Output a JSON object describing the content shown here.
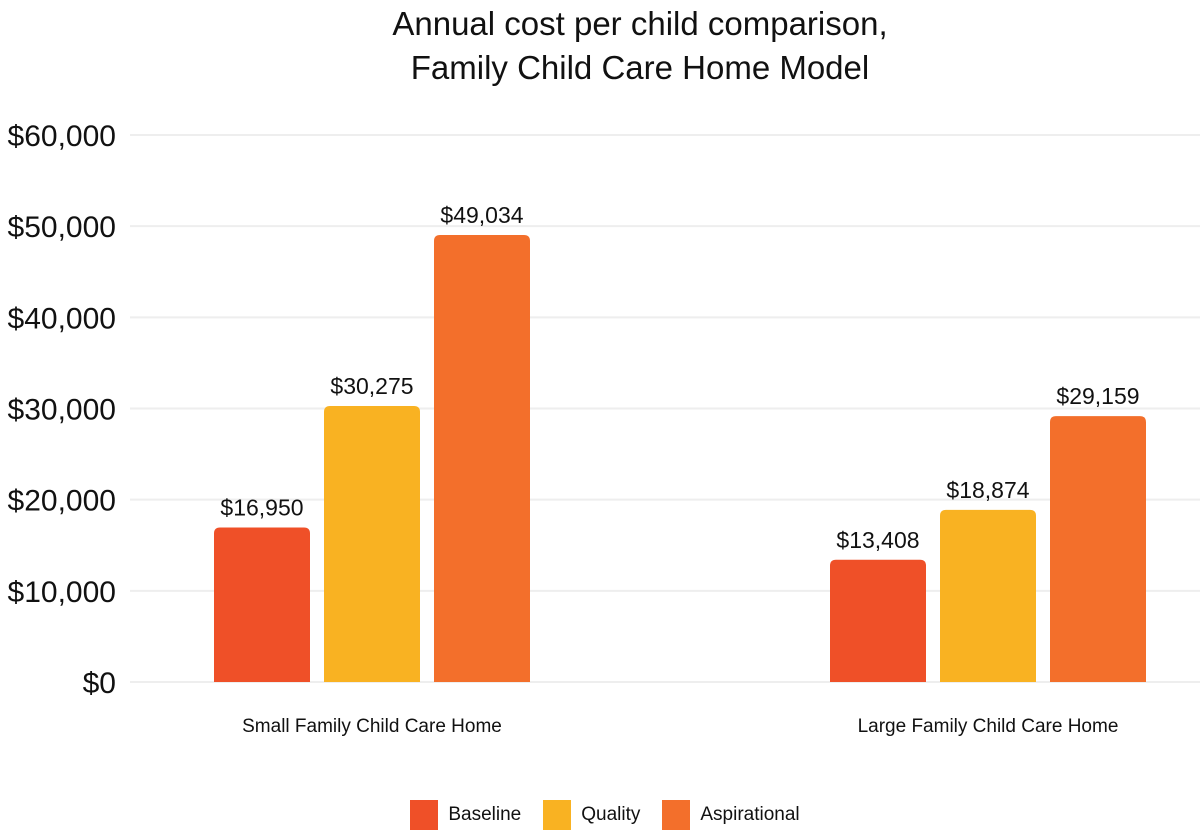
{
  "chart_data": {
    "type": "bar",
    "title_lines": [
      "Annual cost per child comparison,",
      "Family Child Care Home Model"
    ],
    "categories": [
      "Small Family Child Care Home",
      "Large Family Child Care Home"
    ],
    "series": [
      {
        "name": "Baseline",
        "color": "#EF5028",
        "values": [
          16950,
          13408
        ],
        "labels": [
          "$16,950",
          "$13,408"
        ]
      },
      {
        "name": "Quality",
        "color": "#F9B222",
        "values": [
          30275,
          18874
        ],
        "labels": [
          "$30,275",
          "$18,874"
        ]
      },
      {
        "name": "Aspirational",
        "color": "#F36F2B",
        "values": [
          49034,
          29159
        ],
        "labels": [
          "$49,034",
          "$29,159"
        ]
      }
    ],
    "yticks": [
      0,
      10000,
      20000,
      30000,
      40000,
      50000,
      60000
    ],
    "ytick_labels": [
      "$0",
      "$10,000",
      "$20,000",
      "$30,000",
      "$40,000",
      "$50,000",
      "$60,000"
    ],
    "ylim": [
      0,
      60000
    ],
    "grid": true,
    "legend_position": "bottom-center"
  }
}
